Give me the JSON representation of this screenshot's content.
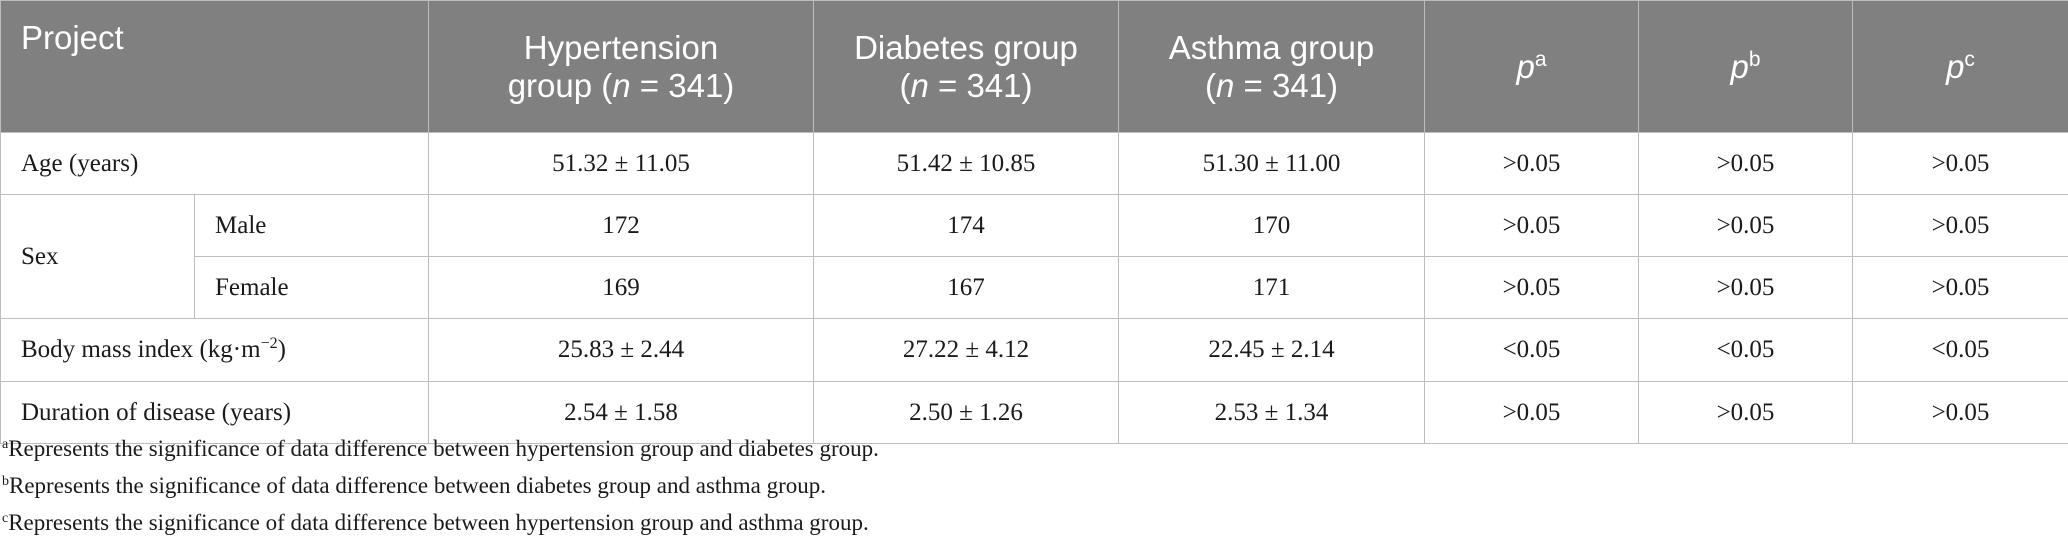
{
  "header": {
    "project": "Project",
    "hypertension_line1": "Hypertension",
    "hypertension_line2_prefix": "group (",
    "diabetes_line1": "Diabetes group",
    "asthma_line1": "Asthma group",
    "n_var": "n",
    "n_value": " = 341)",
    "n_open": "(",
    "p_var": "p",
    "p_a": "a",
    "p_b": "b",
    "p_c": "c"
  },
  "rows": {
    "age": {
      "label": "Age (years)",
      "values": [
        "51.32 ± 11.05",
        "51.42 ± 10.85",
        "51.30 ± 11.00",
        ">0.05",
        ">0.05",
        ">0.05"
      ]
    },
    "sex": {
      "label": "Sex",
      "male": {
        "label": "Male",
        "values": [
          "172",
          "174",
          "170",
          ">0.05",
          ">0.05",
          ">0.05"
        ]
      },
      "female": {
        "label": "Female",
        "values": [
          "169",
          "167",
          "171",
          ">0.05",
          ">0.05",
          ">0.05"
        ]
      }
    },
    "bmi": {
      "label_prefix": "Body mass index (kg·m",
      "label_sup": "−2",
      "label_suffix": ")",
      "values": [
        "25.83 ± 2.44",
        "27.22 ± 4.12",
        "22.45 ± 2.14",
        "<0.05",
        "<0.05",
        "<0.05"
      ]
    },
    "duration": {
      "label": "Duration of disease (years)",
      "values": [
        "2.54 ± 1.58",
        "2.50 ± 1.26",
        "2.53 ± 1.34",
        ">0.05",
        ">0.05",
        ">0.05"
      ]
    }
  },
  "footnotes": [
    {
      "mark": "a",
      "text": "Represents the significance of data difference between hypertension group and diabetes group."
    },
    {
      "mark": "b",
      "text": "Represents the significance of data difference between diabetes group and asthma group."
    },
    {
      "mark": "c",
      "text": "Represents the significance of data difference between hypertension group and asthma group."
    }
  ],
  "colors": {
    "header_bg": "#808080",
    "header_text": "#ffffff",
    "grid": "#bdbdbd"
  }
}
